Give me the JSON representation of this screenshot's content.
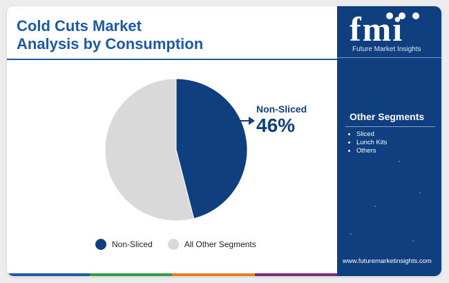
{
  "header": {
    "title_line1": "Cold Cuts Market",
    "title_line2": "Analysis by Consumption"
  },
  "chart_data": {
    "type": "pie",
    "title": "Cold Cuts Market Analysis by Consumption",
    "categories": [
      "Non-Sliced",
      "All Other Segments"
    ],
    "values": [
      46,
      54
    ],
    "colors": [
      "#0f3f7f",
      "#d9d9d9"
    ],
    "callout": {
      "label": "Non-Sliced",
      "value": "46%"
    },
    "legend": "bottom"
  },
  "sidebar": {
    "logo_text": "fmi",
    "logo_tagline": "Future Market Insights",
    "segments_title": "Other Segments",
    "segments": [
      "Sliced",
      "Lunch Kits",
      "Others"
    ],
    "website": "www.futuremarketinsights.com"
  },
  "colors": {
    "brand": "#0f3f7f",
    "title_blue": "#1c5aa6",
    "muted": "#d9d9d9",
    "bar": [
      "#1c5aa6",
      "#2f9e44",
      "#e67e22",
      "#7b2a8a"
    ]
  }
}
